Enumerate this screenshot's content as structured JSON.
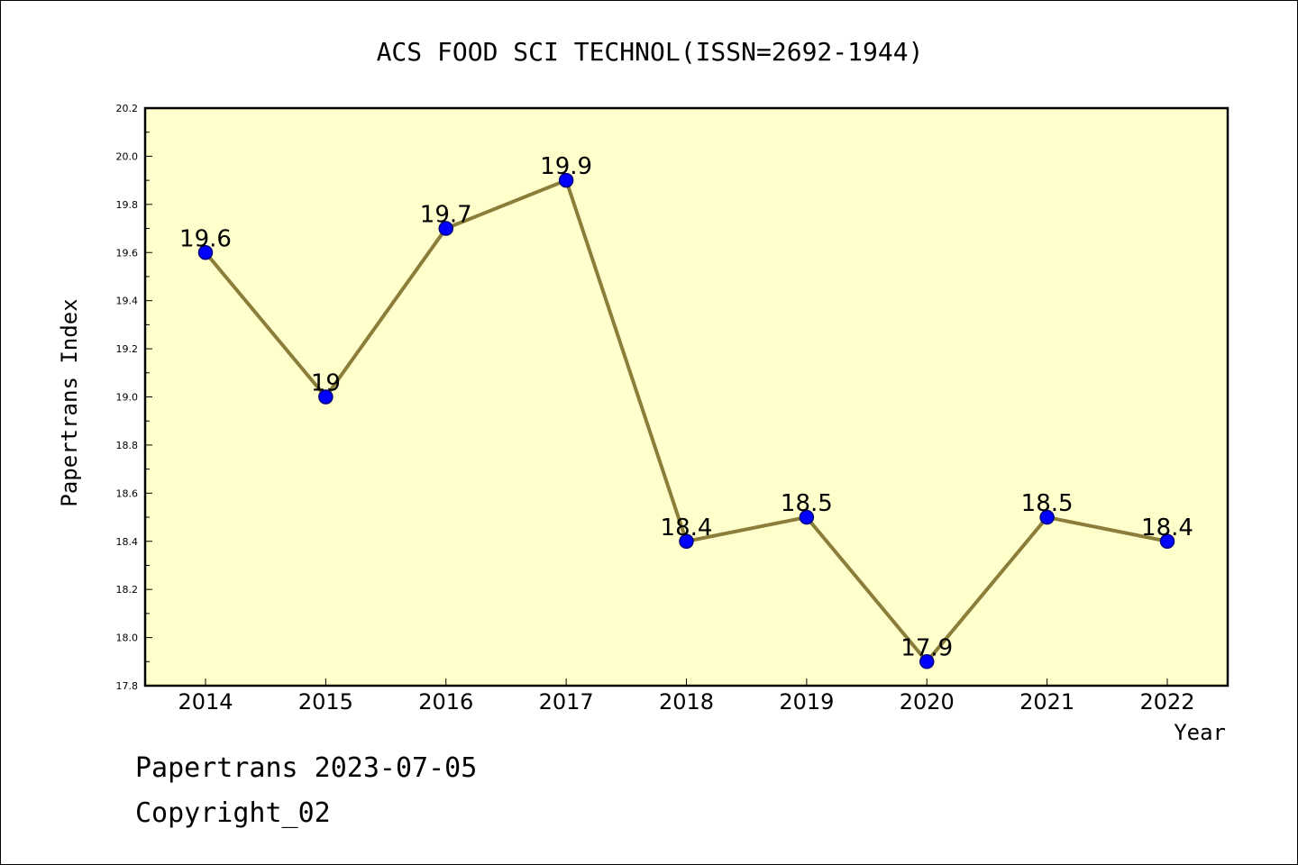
{
  "chart_data": {
    "type": "line",
    "title": "ACS FOOD SCI TECHNOL(ISSN=2692-1944)",
    "xlabel": "Year",
    "ylabel": "Papertrans Index",
    "categories": [
      "2014",
      "2015",
      "2016",
      "2017",
      "2018",
      "2019",
      "2020",
      "2021",
      "2022"
    ],
    "values": [
      19.6,
      19.0,
      19.7,
      19.9,
      18.4,
      18.5,
      17.9,
      18.5,
      18.4
    ],
    "data_labels": [
      "19.6",
      "19",
      "19.7",
      "19.9",
      "18.4",
      "18.5",
      "17.9",
      "18.5",
      "18.4"
    ],
    "ylim": [
      17.8,
      20.2
    ],
    "yticks": [
      "17.8",
      "18.0",
      "18.2",
      "18.4",
      "18.6",
      "18.8",
      "19.0",
      "19.2",
      "19.4",
      "19.6",
      "19.8",
      "20.0",
      "20.2"
    ],
    "grid": false,
    "colors": {
      "plot_background": "#ffffcc",
      "line": "#8b7d3a",
      "marker_fill": "#0000ff",
      "marker_edge": "#000080"
    }
  },
  "footer": {
    "line1": "Papertrans 2023-07-05",
    "line2": "Copyright_02"
  }
}
